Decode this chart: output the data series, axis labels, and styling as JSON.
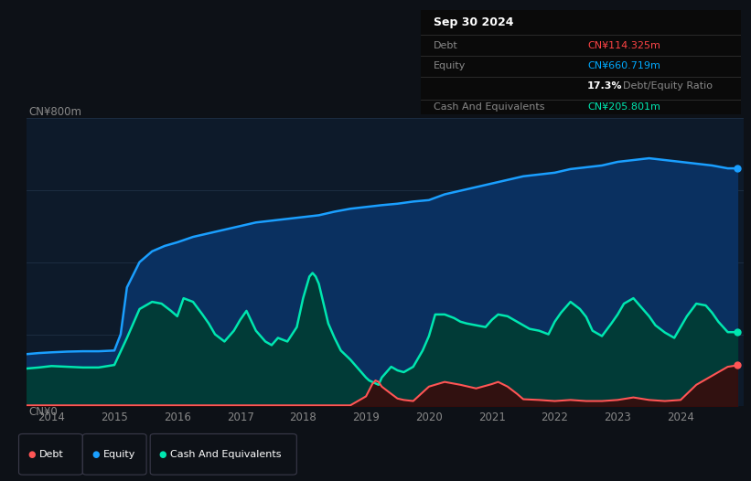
{
  "background_color": "#0d1117",
  "plot_bg_color": "#0d1a2a",
  "title_box": {
    "date": "Sep 30 2024",
    "debt_label": "Debt",
    "debt_value": "CN¥114.325m",
    "debt_color": "#ff4444",
    "equity_label": "Equity",
    "equity_value": "CN¥660.719m",
    "equity_color": "#00aaff",
    "ratio_bold": "17.3%",
    "ratio_text": "Debt/Equity Ratio",
    "ratio_bold_color": "#ffffff",
    "ratio_text_color": "#888888",
    "cash_label": "Cash And Equivalents",
    "cash_value": "CN¥205.801m",
    "cash_color": "#00e6b0",
    "label_color": "#888888"
  },
  "y_label_top": "CN¥800m",
  "y_label_bottom": "CN¥0",
  "x_ticks": [
    "2014",
    "2015",
    "2016",
    "2017",
    "2018",
    "2019",
    "2020",
    "2021",
    "2022",
    "2023",
    "2024"
  ],
  "x_tick_vals": [
    2014,
    2015,
    2016,
    2017,
    2018,
    2019,
    2020,
    2021,
    2022,
    2023,
    2024
  ],
  "ylim": [
    0,
    800
  ],
  "xlim_min": 2013.6,
  "xlim_max": 2025.0,
  "equity_color": "#1a9fff",
  "equity_fill": "#0a3060",
  "debt_color": "#ff5555",
  "debt_fill": "#3a0a0a",
  "cash_color": "#00e6b0",
  "cash_fill": "#003d30",
  "legend": [
    {
      "label": "Debt",
      "color": "#ff5555"
    },
    {
      "label": "Equity",
      "color": "#1a9fff"
    },
    {
      "label": "Cash And Equivalents",
      "color": "#00e6b0"
    }
  ],
  "equity_data": {
    "x": [
      2013.6,
      2013.8,
      2014.0,
      2014.25,
      2014.5,
      2014.75,
      2015.0,
      2015.1,
      2015.2,
      2015.4,
      2015.6,
      2015.8,
      2016.0,
      2016.25,
      2016.5,
      2016.75,
      2017.0,
      2017.25,
      2017.5,
      2017.75,
      2018.0,
      2018.25,
      2018.5,
      2018.75,
      2019.0,
      2019.25,
      2019.5,
      2019.75,
      2020.0,
      2020.25,
      2020.5,
      2020.75,
      2021.0,
      2021.25,
      2021.5,
      2021.75,
      2022.0,
      2022.25,
      2022.5,
      2022.75,
      2023.0,
      2023.25,
      2023.5,
      2023.75,
      2024.0,
      2024.25,
      2024.5,
      2024.75,
      2024.9
    ],
    "y": [
      145,
      148,
      150,
      152,
      153,
      153,
      155,
      200,
      330,
      400,
      430,
      445,
      455,
      470,
      480,
      490,
      500,
      510,
      515,
      520,
      525,
      530,
      540,
      548,
      553,
      558,
      562,
      568,
      572,
      588,
      598,
      608,
      618,
      628,
      638,
      643,
      648,
      658,
      663,
      668,
      678,
      683,
      688,
      683,
      678,
      673,
      668,
      660,
      660
    ]
  },
  "cash_data": {
    "x": [
      2013.6,
      2013.8,
      2014.0,
      2014.25,
      2014.5,
      2014.75,
      2015.0,
      2015.2,
      2015.4,
      2015.6,
      2015.75,
      2015.9,
      2016.0,
      2016.1,
      2016.25,
      2016.4,
      2016.5,
      2016.6,
      2016.75,
      2016.9,
      2017.0,
      2017.1,
      2017.25,
      2017.4,
      2017.5,
      2017.6,
      2017.75,
      2017.9,
      2018.0,
      2018.1,
      2018.15,
      2018.2,
      2018.25,
      2018.4,
      2018.5,
      2018.6,
      2018.75,
      2018.9,
      2019.0,
      2019.05,
      2019.1,
      2019.2,
      2019.25,
      2019.4,
      2019.5,
      2019.6,
      2019.75,
      2019.9,
      2020.0,
      2020.1,
      2020.25,
      2020.4,
      2020.5,
      2020.6,
      2020.75,
      2020.9,
      2021.0,
      2021.1,
      2021.25,
      2021.4,
      2021.5,
      2021.6,
      2021.75,
      2021.9,
      2022.0,
      2022.1,
      2022.25,
      2022.4,
      2022.5,
      2022.6,
      2022.75,
      2022.9,
      2023.0,
      2023.1,
      2023.25,
      2023.4,
      2023.5,
      2023.6,
      2023.75,
      2023.9,
      2024.0,
      2024.1,
      2024.25,
      2024.4,
      2024.5,
      2024.6,
      2024.75,
      2024.9
    ],
    "y": [
      105,
      108,
      112,
      110,
      108,
      108,
      115,
      190,
      270,
      290,
      285,
      265,
      250,
      300,
      290,
      255,
      230,
      200,
      180,
      210,
      240,
      265,
      210,
      180,
      170,
      190,
      180,
      220,
      300,
      360,
      370,
      360,
      340,
      230,
      190,
      155,
      130,
      100,
      80,
      72,
      68,
      60,
      80,
      110,
      100,
      95,
      110,
      155,
      195,
      255,
      255,
      245,
      235,
      230,
      225,
      220,
      240,
      255,
      250,
      235,
      225,
      215,
      210,
      200,
      235,
      260,
      290,
      270,
      248,
      210,
      195,
      230,
      255,
      285,
      300,
      270,
      250,
      225,
      205,
      190,
      220,
      250,
      285,
      280,
      260,
      235,
      206,
      206
    ]
  },
  "debt_data": {
    "x": [
      2013.6,
      2014.0,
      2014.25,
      2014.5,
      2014.75,
      2015.0,
      2015.25,
      2015.5,
      2015.75,
      2016.0,
      2016.25,
      2016.5,
      2016.75,
      2017.0,
      2017.25,
      2017.5,
      2017.75,
      2018.0,
      2018.25,
      2018.5,
      2018.75,
      2019.0,
      2019.1,
      2019.15,
      2019.2,
      2019.25,
      2019.4,
      2019.5,
      2019.6,
      2019.75,
      2020.0,
      2020.25,
      2020.5,
      2020.75,
      2021.0,
      2021.1,
      2021.25,
      2021.4,
      2021.5,
      2021.75,
      2022.0,
      2022.25,
      2022.5,
      2022.75,
      2023.0,
      2023.25,
      2023.5,
      2023.75,
      2024.0,
      2024.25,
      2024.5,
      2024.75,
      2024.9
    ],
    "y": [
      3,
      3,
      3,
      3,
      3,
      3,
      3,
      3,
      3,
      3,
      3,
      3,
      3,
      3,
      3,
      3,
      3,
      3,
      3,
      3,
      3,
      28,
      62,
      72,
      68,
      55,
      35,
      22,
      18,
      15,
      55,
      68,
      60,
      50,
      62,
      68,
      55,
      35,
      20,
      18,
      15,
      18,
      15,
      15,
      18,
      25,
      18,
      15,
      18,
      60,
      85,
      110,
      114
    ]
  }
}
